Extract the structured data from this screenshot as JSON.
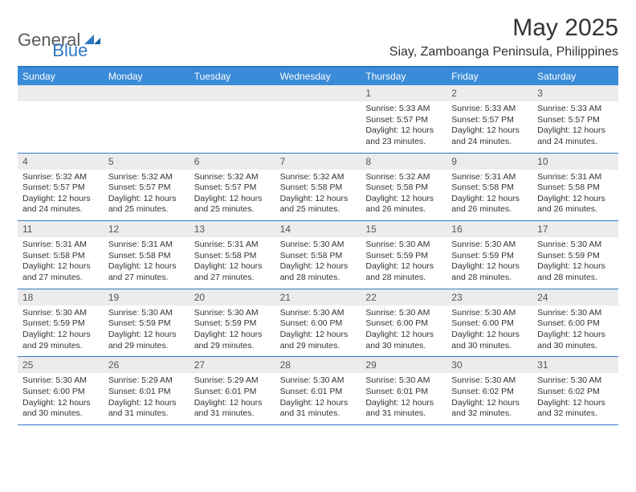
{
  "logo": {
    "word1": "General",
    "word2": "Blue"
  },
  "title": "May 2025",
  "location": "Siay, Zamboanga Peninsula, Philippines",
  "colors": {
    "header_bg": "#3a8bd8",
    "header_border": "#2f78c2",
    "daynum_bg": "#ececec",
    "text": "#333333",
    "logo_gray": "#5a5a5a",
    "logo_blue": "#2f78c2"
  },
  "weekdays": [
    "Sunday",
    "Monday",
    "Tuesday",
    "Wednesday",
    "Thursday",
    "Friday",
    "Saturday"
  ],
  "weeks": [
    [
      {
        "n": "",
        "sr": "",
        "ss": "",
        "dl": ""
      },
      {
        "n": "",
        "sr": "",
        "ss": "",
        "dl": ""
      },
      {
        "n": "",
        "sr": "",
        "ss": "",
        "dl": ""
      },
      {
        "n": "",
        "sr": "",
        "ss": "",
        "dl": ""
      },
      {
        "n": "1",
        "sr": "Sunrise: 5:33 AM",
        "ss": "Sunset: 5:57 PM",
        "dl": "Daylight: 12 hours and 23 minutes."
      },
      {
        "n": "2",
        "sr": "Sunrise: 5:33 AM",
        "ss": "Sunset: 5:57 PM",
        "dl": "Daylight: 12 hours and 24 minutes."
      },
      {
        "n": "3",
        "sr": "Sunrise: 5:33 AM",
        "ss": "Sunset: 5:57 PM",
        "dl": "Daylight: 12 hours and 24 minutes."
      }
    ],
    [
      {
        "n": "4",
        "sr": "Sunrise: 5:32 AM",
        "ss": "Sunset: 5:57 PM",
        "dl": "Daylight: 12 hours and 24 minutes."
      },
      {
        "n": "5",
        "sr": "Sunrise: 5:32 AM",
        "ss": "Sunset: 5:57 PM",
        "dl": "Daylight: 12 hours and 25 minutes."
      },
      {
        "n": "6",
        "sr": "Sunrise: 5:32 AM",
        "ss": "Sunset: 5:57 PM",
        "dl": "Daylight: 12 hours and 25 minutes."
      },
      {
        "n": "7",
        "sr": "Sunrise: 5:32 AM",
        "ss": "Sunset: 5:58 PM",
        "dl": "Daylight: 12 hours and 25 minutes."
      },
      {
        "n": "8",
        "sr": "Sunrise: 5:32 AM",
        "ss": "Sunset: 5:58 PM",
        "dl": "Daylight: 12 hours and 26 minutes."
      },
      {
        "n": "9",
        "sr": "Sunrise: 5:31 AM",
        "ss": "Sunset: 5:58 PM",
        "dl": "Daylight: 12 hours and 26 minutes."
      },
      {
        "n": "10",
        "sr": "Sunrise: 5:31 AM",
        "ss": "Sunset: 5:58 PM",
        "dl": "Daylight: 12 hours and 26 minutes."
      }
    ],
    [
      {
        "n": "11",
        "sr": "Sunrise: 5:31 AM",
        "ss": "Sunset: 5:58 PM",
        "dl": "Daylight: 12 hours and 27 minutes."
      },
      {
        "n": "12",
        "sr": "Sunrise: 5:31 AM",
        "ss": "Sunset: 5:58 PM",
        "dl": "Daylight: 12 hours and 27 minutes."
      },
      {
        "n": "13",
        "sr": "Sunrise: 5:31 AM",
        "ss": "Sunset: 5:58 PM",
        "dl": "Daylight: 12 hours and 27 minutes."
      },
      {
        "n": "14",
        "sr": "Sunrise: 5:30 AM",
        "ss": "Sunset: 5:58 PM",
        "dl": "Daylight: 12 hours and 28 minutes."
      },
      {
        "n": "15",
        "sr": "Sunrise: 5:30 AM",
        "ss": "Sunset: 5:59 PM",
        "dl": "Daylight: 12 hours and 28 minutes."
      },
      {
        "n": "16",
        "sr": "Sunrise: 5:30 AM",
        "ss": "Sunset: 5:59 PM",
        "dl": "Daylight: 12 hours and 28 minutes."
      },
      {
        "n": "17",
        "sr": "Sunrise: 5:30 AM",
        "ss": "Sunset: 5:59 PM",
        "dl": "Daylight: 12 hours and 28 minutes."
      }
    ],
    [
      {
        "n": "18",
        "sr": "Sunrise: 5:30 AM",
        "ss": "Sunset: 5:59 PM",
        "dl": "Daylight: 12 hours and 29 minutes."
      },
      {
        "n": "19",
        "sr": "Sunrise: 5:30 AM",
        "ss": "Sunset: 5:59 PM",
        "dl": "Daylight: 12 hours and 29 minutes."
      },
      {
        "n": "20",
        "sr": "Sunrise: 5:30 AM",
        "ss": "Sunset: 5:59 PM",
        "dl": "Daylight: 12 hours and 29 minutes."
      },
      {
        "n": "21",
        "sr": "Sunrise: 5:30 AM",
        "ss": "Sunset: 6:00 PM",
        "dl": "Daylight: 12 hours and 29 minutes."
      },
      {
        "n": "22",
        "sr": "Sunrise: 5:30 AM",
        "ss": "Sunset: 6:00 PM",
        "dl": "Daylight: 12 hours and 30 minutes."
      },
      {
        "n": "23",
        "sr": "Sunrise: 5:30 AM",
        "ss": "Sunset: 6:00 PM",
        "dl": "Daylight: 12 hours and 30 minutes."
      },
      {
        "n": "24",
        "sr": "Sunrise: 5:30 AM",
        "ss": "Sunset: 6:00 PM",
        "dl": "Daylight: 12 hours and 30 minutes."
      }
    ],
    [
      {
        "n": "25",
        "sr": "Sunrise: 5:30 AM",
        "ss": "Sunset: 6:00 PM",
        "dl": "Daylight: 12 hours and 30 minutes."
      },
      {
        "n": "26",
        "sr": "Sunrise: 5:29 AM",
        "ss": "Sunset: 6:01 PM",
        "dl": "Daylight: 12 hours and 31 minutes."
      },
      {
        "n": "27",
        "sr": "Sunrise: 5:29 AM",
        "ss": "Sunset: 6:01 PM",
        "dl": "Daylight: 12 hours and 31 minutes."
      },
      {
        "n": "28",
        "sr": "Sunrise: 5:30 AM",
        "ss": "Sunset: 6:01 PM",
        "dl": "Daylight: 12 hours and 31 minutes."
      },
      {
        "n": "29",
        "sr": "Sunrise: 5:30 AM",
        "ss": "Sunset: 6:01 PM",
        "dl": "Daylight: 12 hours and 31 minutes."
      },
      {
        "n": "30",
        "sr": "Sunrise: 5:30 AM",
        "ss": "Sunset: 6:02 PM",
        "dl": "Daylight: 12 hours and 32 minutes."
      },
      {
        "n": "31",
        "sr": "Sunrise: 5:30 AM",
        "ss": "Sunset: 6:02 PM",
        "dl": "Daylight: 12 hours and 32 minutes."
      }
    ]
  ]
}
